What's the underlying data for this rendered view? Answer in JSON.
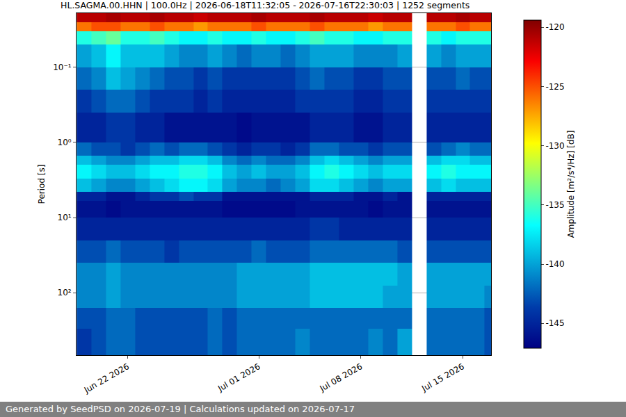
{
  "chart_data": {
    "type": "heatmap",
    "title": "HL.SAGMA.00.HHN | 100.0Hz | 2026-06-18T11:32:05 - 2026-07-16T22:30:03 | 1252 segments",
    "y_label": "Period [s]",
    "colorbar_label": "Amplitude [m²/s⁴/Hz] [dB]",
    "footer": "Generated by SeedPSD on 2026-07-19 | Calculations updated on 2026-07-17",
    "log": "y",
    "grid": true,
    "color": "Jet",
    "x": [
      "2026-06-19",
      "2026-06-20",
      "2026-06-21",
      "2026-06-22",
      "2026-06-23",
      "2026-06-24",
      "2026-06-25",
      "2026-06-26",
      "2026-06-27",
      "2026-06-28",
      "2026-06-29",
      "2026-06-30",
      "2026-07-01",
      "2026-07-02",
      "2026-07-03",
      "2026-07-04",
      "2026-07-05",
      "2026-07-06",
      "2026-07-07",
      "2026-07-08",
      "2026-07-09",
      "2026-07-10",
      "2026-07-11",
      "2026-07-12",
      "2026-07-13",
      "2026-07-14",
      "2026-07-15",
      "2026-07-16",
      "2026-07-17"
    ],
    "y_bins": [
      0.019,
      0.025,
      0.033,
      0.05,
      0.1,
      0.2,
      0.4,
      1.0,
      1.5,
      2.0,
      3.0,
      4.5,
      6.0,
      10,
      20,
      40,
      80,
      160,
      300,
      680
    ],
    "xlim": [
      "2026-06-18T11:32:05",
      "2026-07-16T22:30:03"
    ],
    "xticks": [
      {
        "value": "2026-06-22",
        "label": "Jun 22 2026"
      },
      {
        "value": "2026-07-01",
        "label": "Jul 01 2026"
      },
      {
        "value": "2026-07-08",
        "label": "Jul 08 2026"
      },
      {
        "value": "2026-07-15",
        "label": "Jul 15 2026"
      }
    ],
    "ylim": [
      680,
      0.019
    ],
    "yticks": [
      {
        "value": 0.1,
        "label": "10⁻¹"
      },
      {
        "value": 1,
        "label": "10⁰"
      },
      {
        "value": 10,
        "label": "10¹"
      },
      {
        "value": 100,
        "label": "10²"
      }
    ],
    "zlim": [
      -147.1,
      -119.4
    ],
    "zticks": [
      -145,
      -140,
      -135,
      -130,
      -125,
      -120
    ],
    "cells": [
      [
        -121,
        -121,
        -120.5,
        -121,
        -121,
        -120.5,
        -121,
        -121,
        -121.5,
        -121,
        -121,
        -121,
        -120.5,
        -121,
        -121,
        -121,
        -120.5,
        -121,
        -121,
        -121,
        -121.5,
        -121,
        -121,
        null,
        -121,
        -121,
        -120.5,
        -121,
        -121
      ],
      [
        -126,
        -125,
        -125,
        -126,
        -126,
        -125,
        -126,
        -126,
        -127,
        -126,
        -126,
        -126,
        -125,
        -126,
        -126,
        -126,
        -125,
        -126,
        -126,
        -126,
        -127,
        -126,
        -126,
        null,
        -126,
        -126,
        -125,
        -126,
        -126
      ],
      [
        -136,
        -135,
        -134,
        -136,
        -136,
        -135,
        -136,
        -137,
        -137,
        -136,
        -137,
        -137,
        -136,
        -137,
        -137,
        -136,
        -135,
        -136,
        -136,
        -137,
        -137,
        -136,
        -136,
        null,
        -136,
        -137,
        -136,
        -136,
        -136
      ],
      [
        -140,
        -139,
        -137,
        -139,
        -139,
        -139,
        -140,
        -141,
        -141,
        -140,
        -141,
        -142,
        -141,
        -141,
        -142,
        -141,
        -140,
        -140,
        -140,
        -141,
        -141,
        -141,
        -140,
        null,
        -140,
        -141,
        -140,
        -140,
        -140
      ],
      [
        -142,
        -141,
        -139,
        -140,
        -141,
        -142,
        -143,
        -143,
        -144,
        -143,
        -144,
        -144,
        -144,
        -144,
        -144,
        -143,
        -142,
        -143,
        -143,
        -144,
        -144,
        -143,
        -143,
        null,
        -143,
        -143,
        -142,
        -143,
        -143
      ],
      [
        -144,
        -143,
        -142,
        -142,
        -143,
        -144,
        -144,
        -144,
        -145,
        -144,
        -145,
        -145,
        -145,
        -145,
        -145,
        -144,
        -144,
        -144,
        -144,
        -145,
        -145,
        -144,
        -144,
        null,
        -144,
        -144,
        -144,
        -144,
        -144
      ],
      [
        -145,
        -145,
        -144,
        -144,
        -145,
        -145,
        -146,
        -146,
        -146,
        -146,
        -146,
        -146.5,
        -146,
        -146,
        -146,
        -146,
        -145,
        -145,
        -145,
        -146,
        -146,
        -145,
        -145,
        null,
        -145,
        -145,
        -145,
        -145,
        -145
      ],
      [
        -142,
        -143,
        -143,
        -144,
        -143,
        -142,
        -143,
        -142,
        -142,
        -143,
        -144,
        -145,
        -144,
        -144,
        -145,
        -144,
        -142,
        -142,
        -143,
        -143,
        -144,
        -143,
        -143,
        null,
        -143,
        -142,
        -141,
        -142,
        -142
      ],
      [
        -139,
        -140,
        -141,
        -141,
        -140,
        -139,
        -139,
        -138,
        -138,
        -139,
        -141,
        -142,
        -141,
        -142,
        -142,
        -141,
        -139,
        -138,
        -139,
        -140,
        -141,
        -140,
        -140,
        null,
        -139,
        -138,
        -138,
        -139,
        -139
      ],
      [
        -137,
        -138,
        -139,
        -139,
        -138,
        -137,
        -137,
        -136,
        -136,
        -137,
        -139,
        -140,
        -139,
        -140,
        -140,
        -139,
        -137,
        -136,
        -137,
        -138,
        -139,
        -138,
        -138,
        null,
        -137,
        -136,
        -137,
        -137,
        -137
      ],
      [
        -139,
        -140,
        -141,
        -141,
        -140,
        -139,
        -138,
        -137,
        -137,
        -138,
        -140,
        -141,
        -141,
        -142,
        -141,
        -140,
        -138,
        -138,
        -139,
        -140,
        -141,
        -140,
        -140,
        null,
        -139,
        -138,
        -139,
        -139,
        -139
      ],
      [
        -145,
        -145,
        -146,
        -146,
        -145,
        -144,
        -144,
        -143,
        -144,
        -144,
        -146,
        -146,
        -146,
        -146,
        -146,
        -146,
        -145,
        -145,
        -145,
        -146,
        -146,
        -145,
        -146,
        null,
        -145,
        -145,
        -145,
        -145,
        -145
      ],
      [
        -146,
        -146,
        -146.5,
        -146,
        -146,
        -146,
        -146,
        -146,
        -146,
        -146,
        -146.5,
        -146.5,
        -146.5,
        -146.5,
        -146.5,
        -146,
        -146,
        -146,
        -146,
        -146,
        -146.5,
        -146,
        -146,
        null,
        -146,
        -146,
        -146,
        -146,
        -146
      ],
      [
        -145,
        -145,
        -145,
        -145,
        -145,
        -145,
        -145,
        -145,
        -145,
        -145,
        -145,
        -145,
        -145,
        -145,
        -145,
        -145,
        -144,
        -144,
        -145,
        -145,
        -145,
        -145,
        -145,
        null,
        -145,
        -145,
        -145,
        -145,
        -145
      ],
      [
        -143,
        -143,
        -142,
        -143,
        -143,
        -143,
        -144,
        -143,
        -143,
        -143,
        -143,
        -143,
        -142,
        -143,
        -143,
        -143,
        -142,
        -142,
        -142,
        -142,
        -142,
        -142,
        -143,
        null,
        -143,
        -143,
        -143,
        -143,
        -143
      ],
      [
        -141,
        -141,
        -140,
        -141,
        -141,
        -141,
        -141,
        -141,
        -141,
        -141,
        -141,
        -140,
        -140,
        -140,
        -140,
        -140,
        -139,
        -139,
        -139,
        -139,
        -139,
        -139,
        -140,
        null,
        -140,
        -140,
        -140,
        -140,
        -140
      ],
      [
        -141,
        -141,
        -140,
        -141,
        -141,
        -141,
        -141,
        -141,
        -141,
        -141,
        -141,
        -140,
        -140,
        -140,
        -140,
        -140,
        -139,
        -139,
        -139,
        -139,
        -139,
        -140,
        -140,
        null,
        -140,
        -140,
        -140,
        -140,
        -141
      ],
      [
        -143,
        -143,
        -142,
        -142,
        -143,
        -143,
        -143,
        -143,
        -143,
        -142,
        -143,
        -142,
        -142,
        -142,
        -142,
        -142,
        -142,
        -142,
        -142,
        -142,
        -142,
        -142,
        -142,
        null,
        -142,
        -142,
        -142,
        -142,
        -143
      ],
      [
        -144,
        -143,
        -142,
        -142,
        -143,
        -143,
        -143,
        -143,
        -143,
        -142,
        -143,
        -142,
        -142,
        -142,
        -142,
        -141,
        -142,
        -142,
        -142,
        -142,
        -141,
        -142,
        -140,
        null,
        -142,
        -142,
        -142,
        -142,
        -143
      ]
    ]
  }
}
